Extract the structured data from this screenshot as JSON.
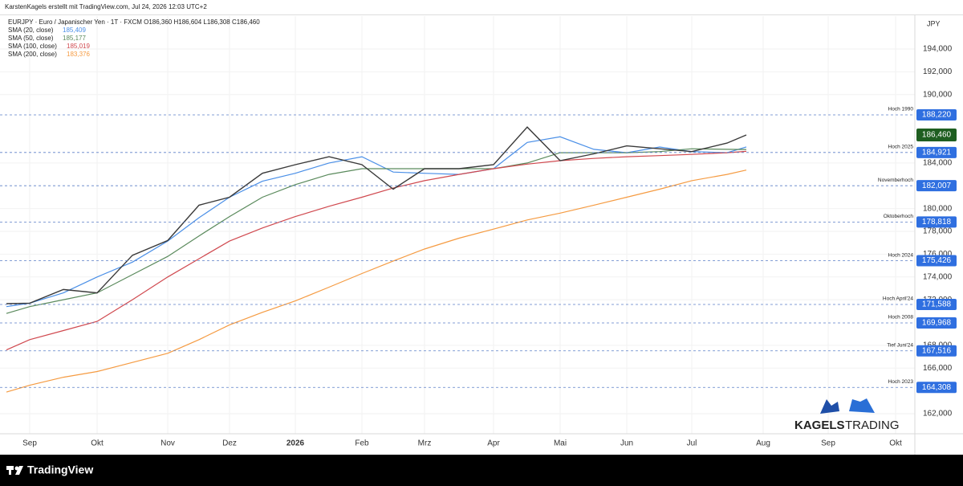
{
  "header": "KarstenKagels erstellt mit TradingView.com, Jul 24, 2026 12:03 UTC+2",
  "footer": "TradingView",
  "logo": {
    "word1": "KAGELS",
    "word2": "TRADING"
  },
  "chart_data": {
    "type": "line",
    "title": "EURJPY · Euro / Japanischer Yen · 1T · FXCM  O186,360  H186,604  L186,308  C186,460",
    "currency": "JPY",
    "categories": [
      null,
      "Sep",
      null,
      "Okt",
      null,
      "Nov",
      null,
      "Dez",
      null,
      "2026",
      null,
      "Feb",
      null,
      "Mrz",
      null,
      "Apr",
      null,
      "Mai",
      null,
      "Jun",
      null,
      "Jul",
      null,
      null,
      "Aug",
      "Sep",
      "Okt"
    ],
    "price": {
      "color": "#3a3a3a",
      "values": [
        171660,
        171700,
        172900,
        172600,
        175900,
        177200,
        180300,
        181000,
        183100,
        183850,
        184550,
        183850,
        181700,
        183500,
        183500,
        183850,
        187150,
        184200,
        184800,
        185500,
        185250,
        185000,
        185750,
        186460,
        null,
        null,
        null
      ]
    },
    "series": [
      {
        "name": "SMA (20, close)",
        "last_label": "185,409",
        "color": "#4a8fe7",
        "values": [
          171400,
          171700,
          172600,
          174000,
          175300,
          177150,
          179200,
          181000,
          182400,
          183100,
          184000,
          184550,
          183200,
          183100,
          183000,
          183500,
          185800,
          186300,
          185200,
          184900,
          185400,
          185000,
          184900,
          185410,
          null,
          null,
          null
        ]
      },
      {
        "name": "SMA (50, close)",
        "last_label": "185,177",
        "color": "#5a8a5c",
        "values": [
          170800,
          171400,
          172000,
          172600,
          174200,
          175800,
          177600,
          179300,
          181000,
          182100,
          183000,
          183500,
          183500,
          183500,
          183500,
          183500,
          184000,
          184900,
          184900,
          184900,
          185000,
          185250,
          185200,
          185180,
          null,
          null,
          null
        ]
      },
      {
        "name": "SMA (100, close)",
        "last_label": "185,019",
        "color": "#d0494f",
        "values": [
          167600,
          168500,
          169300,
          170100,
          172000,
          174000,
          175600,
          177150,
          178300,
          179300,
          180200,
          181000,
          181800,
          182450,
          183000,
          183500,
          183900,
          184200,
          184400,
          184550,
          184650,
          184750,
          184900,
          185020,
          null,
          null,
          null
        ]
      },
      {
        "name": "SMA (200, close)",
        "last_label": "183,376",
        "color": "#f59b42",
        "values": [
          163900,
          164500,
          165200,
          165700,
          166500,
          167300,
          168500,
          169800,
          170900,
          171900,
          173100,
          174300,
          175400,
          176450,
          177400,
          178200,
          179000,
          179600,
          180300,
          181000,
          181700,
          182450,
          183000,
          183380,
          null,
          null,
          null
        ]
      }
    ],
    "levels": [
      {
        "label": "Hoch 1990",
        "value": 188220,
        "price_label": "188,220"
      },
      {
        "label": "Hoch 2025",
        "value": 184921,
        "price_label": "184,921"
      },
      {
        "label": "Novemberhoch",
        "value": 182007,
        "price_label": "182,007"
      },
      {
        "label": "Oktoberhoch",
        "value": 178818,
        "price_label": "178,818"
      },
      {
        "label": "Hoch 2024",
        "value": 175426,
        "price_label": "175,426"
      },
      {
        "label": "Hoch April'24",
        "value": 171588,
        "price_label": "171,588"
      },
      {
        "label": "Hoch 2008",
        "value": 169968,
        "price_label": "169,968"
      },
      {
        "label": "Tief Juni'24",
        "value": 167516,
        "price_label": "167,516"
      },
      {
        "label": "Hoch 2023",
        "value": 164308,
        "price_label": "164,308"
      }
    ],
    "last_price": {
      "value": 186460,
      "label": "186,460",
      "color": "#1e5e20"
    },
    "ylim": [
      160240,
      196890
    ],
    "yticks": [
      {
        "value": 162000,
        "label": "162,000"
      },
      {
        "value": 166000,
        "label": "166,000"
      },
      {
        "value": 168000,
        "label": "168,000"
      },
      {
        "value": 172000,
        "label": "172,000"
      },
      {
        "value": 174000,
        "label": "174,000"
      },
      {
        "value": 176000,
        "label": "176,000"
      },
      {
        "value": 178000,
        "label": "178,000"
      },
      {
        "value": 180000,
        "label": "180,000"
      },
      {
        "value": 184000,
        "label": "184,000"
      },
      {
        "value": 190000,
        "label": "190,000"
      },
      {
        "value": 192000,
        "label": "192,000"
      },
      {
        "value": 194000,
        "label": "194,000"
      }
    ],
    "grid": true
  }
}
